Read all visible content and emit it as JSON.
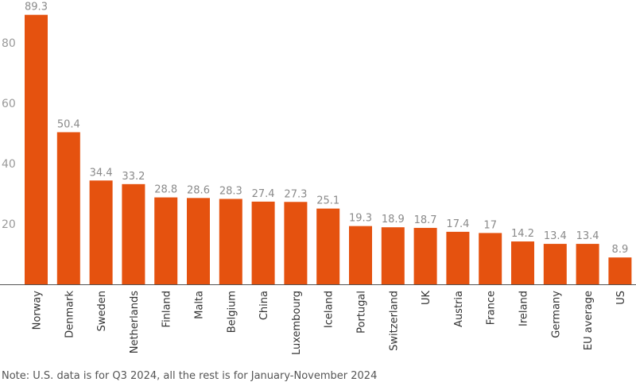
{
  "chart_data": {
    "type": "bar",
    "title": "",
    "xlabel": "",
    "ylabel": "",
    "ylim": [
      0,
      90
    ],
    "yticks": [
      20,
      40,
      60,
      80
    ],
    "grid": false,
    "bar_color": "#E5520F",
    "categories": [
      "Norway",
      "Denmark",
      "Sweden",
      "Netherlands",
      "Finland",
      "Malta",
      "Belgium",
      "China",
      "Luxembourg",
      "Iceland",
      "Portugal",
      "Switzerland",
      "UK",
      "Austria",
      "France",
      "Ireland",
      "Germany",
      "EU average",
      "US"
    ],
    "values": [
      89.3,
      50.4,
      34.4,
      33.2,
      28.8,
      28.6,
      28.3,
      27.4,
      27.3,
      25.1,
      19.3,
      18.9,
      18.7,
      17.4,
      17,
      14.2,
      13.4,
      13.4,
      8.9
    ],
    "value_labels": [
      "89.3",
      "50.4",
      "34.4",
      "33.2",
      "28.8",
      "28.6",
      "28.3",
      "27.4",
      "27.3",
      "25.1",
      "19.3",
      "18.9",
      "18.7",
      "17.4",
      "17",
      "14.2",
      "13.4",
      "13.4",
      "8.9"
    ]
  },
  "note": "Note: U.S. data is for Q3 2024, all the rest is for January-November 2024"
}
